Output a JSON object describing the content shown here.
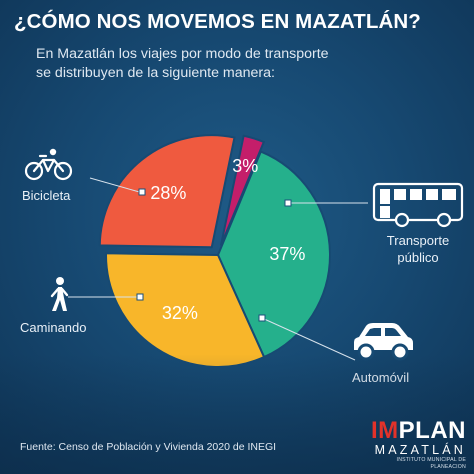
{
  "title": "¿CÓMO NOS MOVEMOS EN MAZATLÁN?",
  "subtitle_lines": [
    "En Mazatlán los viajes por modo de transporte",
    "se distribuyen de la siguiente manera:"
  ],
  "chart_data": {
    "type": "pie",
    "title": "¿CÓMO NOS MOVEMOS EN MAZATLÁN?",
    "slices": [
      {
        "category": "Transporte público",
        "value": 37,
        "label": "37%",
        "color": "#25b08c"
      },
      {
        "category": "Automóvil",
        "value": 32,
        "label": "32%",
        "color": "#f8b62a"
      },
      {
        "category": "Caminando",
        "value": 28,
        "label": "28%",
        "color": "#ef5a3f"
      },
      {
        "category": "Bicicleta",
        "value": 3,
        "label": "3%",
        "color": "#c41e6a"
      }
    ],
    "unit": "%"
  },
  "category_labels": {
    "transporte_line1": "Transporte",
    "transporte_line2": "público",
    "automovil": "Automóvil",
    "caminando": "Caminando",
    "bicicleta": "Bicicleta"
  },
  "icons": [
    "bicycle-icon",
    "pedestrian-icon",
    "bus-icon",
    "car-icon"
  ],
  "source": "Fuente: Censo de Población y Vivienda 2020 de INEGI",
  "brand": {
    "name_accent": "IM",
    "name_rest": "PLAN",
    "city": "MAZATLÁN",
    "tagline": "INSTITUTO MUNICIPAL DE PLANEACION"
  },
  "colors": {
    "background": "#174a73",
    "text": "#ffffff",
    "brand_accent": "#e2322a"
  }
}
